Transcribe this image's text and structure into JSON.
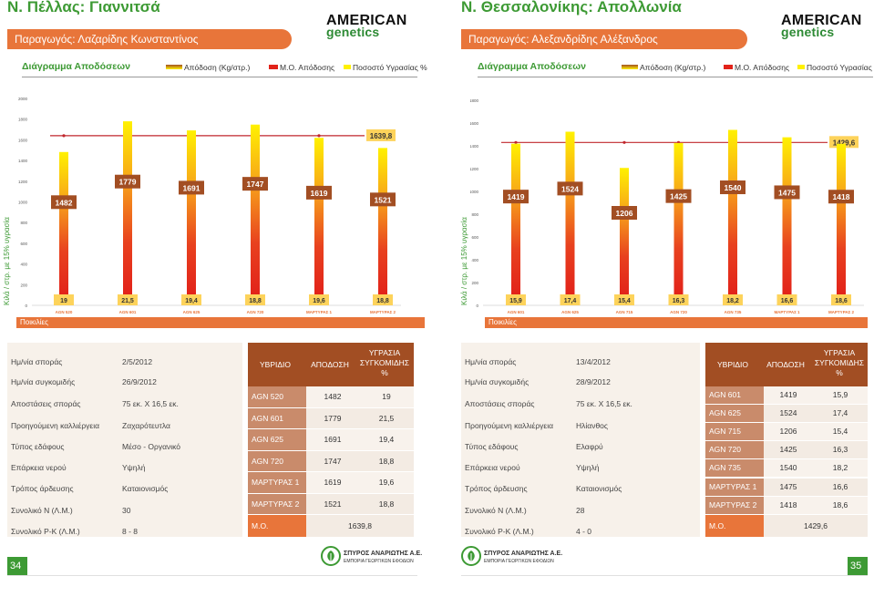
{
  "colors": {
    "green": "#3d9a34",
    "orange": "#e8753a",
    "brown": "#a24e23",
    "tan": "#c98b6b",
    "panel": "#f7f1ea",
    "red": "#e2231a",
    "yellow": "#fff100",
    "mo_label": "#fdd35b"
  },
  "common": {
    "legend_title": "Διάγραμμα Αποδόσεων",
    "legend_items": [
      "Απόδοση (Kg/στρ.)",
      "Μ.Ο. Απόδοσης",
      "Ποσοστό Υγρασίας %"
    ],
    "ylabel": "Κιλά / στρ. με 15% υγρασία",
    "varieties_label": "Ποικιλίες",
    "logo": {
      "line1": "AMERICAN",
      "line2": "genetics"
    },
    "footer_logo": {
      "line1": "ΣΠΥΡΟΣ ΑΝΑΡΙΩΤΗΣ Α.Ε.",
      "line2": "ΕΜΠΟΡΙΑ ΓΕΩΡΓΙΚΩΝ ΕΦΟΔΙΩΝ"
    }
  },
  "pages": [
    {
      "title": "Ν. Πέλλας: Γιαννιτσά",
      "producer": "Παραγωγός: Λαζαρίδης Κωνσταντίνος",
      "page_number": "34",
      "info": [
        {
          "label": "Ημ/νία σποράς",
          "value": "2/5/2012"
        },
        {
          "label": "Ημ/νία συγκομιδής",
          "value": "26/9/2012"
        },
        {
          "label": "Αποστάσεις σποράς",
          "value": "75 εκ. Χ 16,5 εκ."
        },
        {
          "label": "Προηγούμενη καλλιέργεια",
          "value": "Ζαχαρότευτλα"
        },
        {
          "label": "Τύπος εδάφους",
          "value": "Μέσο - Οργανικό"
        },
        {
          "label": "Επάρκεια νερού",
          "value": "Υψηλή"
        },
        {
          "label": "Τρόπος άρδευσης",
          "value": "Καταιονισμός"
        },
        {
          "label": "Συνολικό Ν (Λ.Μ.)",
          "value": "30"
        },
        {
          "label": "Συνολικό P-K (Λ.Μ.)",
          "value": "8 - 8"
        }
      ],
      "table": {
        "headers": [
          "ΥΒΡΙΔΙΟ",
          "ΑΠΟΔΟΣΗ",
          "ΥΓΡΑΣΙΑ ΣΥΓΚΟΜΙΔΗΣ %"
        ],
        "rows": [
          [
            "AGN 520",
            "1482",
            "19"
          ],
          [
            "AGN 601",
            "1779",
            "21,5"
          ],
          [
            "AGN 625",
            "1691",
            "19,4"
          ],
          [
            "AGN 720",
            "1747",
            "18,8"
          ],
          [
            "ΜΑΡΤΥΡΑΣ 1",
            "1619",
            "19,6"
          ],
          [
            "ΜΑΡΤΥΡΑΣ 2",
            "1521",
            "18,8"
          ]
        ],
        "mo_label": "Μ.Ο.",
        "mo_value": "1639,8"
      }
    },
    {
      "title": "Ν. Θεσσαλονίκης: Απολλωνία",
      "producer": "Παραγωγός: Αλεξανδρίδης Αλέξανδρος",
      "page_number": "35",
      "info": [
        {
          "label": "Ημ/νία σποράς",
          "value": "13/4/2012"
        },
        {
          "label": "Ημ/νία συγκομιδής",
          "value": "28/9/2012"
        },
        {
          "label": "Αποστάσεις σποράς",
          "value": "75 εκ. Χ 16,5 εκ."
        },
        {
          "label": "Προηγούμενη καλλιέργεια",
          "value": "Ηλίανθος"
        },
        {
          "label": "Τύπος εδάφους",
          "value": "Ελαφρύ"
        },
        {
          "label": "Επάρκεια νερού",
          "value": "Υψηλή"
        },
        {
          "label": "Τρόπος άρδευσης",
          "value": "Καταιονισμός"
        },
        {
          "label": "Συνολικό Ν (Λ.Μ.)",
          "value": "28"
        },
        {
          "label": "Συνολικό P-K (Λ.Μ.)",
          "value": "4 - 0"
        }
      ],
      "table": {
        "headers": [
          "ΥΒΡΙΔΙΟ",
          "ΑΠΟΔΟΣΗ",
          "ΥΓΡΑΣΙΑ ΣΥΓΚΟΜΙΔΗΣ %"
        ],
        "rows": [
          [
            "AGN 601",
            "1419",
            "15,9"
          ],
          [
            "AGN 625",
            "1524",
            "17,4"
          ],
          [
            "AGN 715",
            "1206",
            "15,4"
          ],
          [
            "AGN 720",
            "1425",
            "16,3"
          ],
          [
            "AGN 735",
            "1540",
            "18,2"
          ],
          [
            "ΜΑΡΤΥΡΑΣ 1",
            "1475",
            "16,6"
          ],
          [
            "ΜΑΡΤΥΡΑΣ 2",
            "1418",
            "18,6"
          ]
        ],
        "mo_label": "Μ.Ο.",
        "mo_value": "1429,6"
      }
    }
  ],
  "chart_data": [
    {
      "type": "bar",
      "categories": [
        "AGN 520",
        "AGN 601",
        "AGN 625",
        "AGN 720",
        "ΜΑΡΤΥΡΑΣ 1",
        "ΜΑΡΤΥΡΑΣ 2"
      ],
      "values": [
        1482,
        1779,
        1691,
        1747,
        1619,
        1521
      ],
      "value_labels": [
        "1482",
        "1779",
        "1691",
        "1747",
        "1619",
        "1521"
      ],
      "moisture": [
        "19",
        "21,5",
        "19,4",
        "18,8",
        "19,6",
        "18,8"
      ],
      "average": 1639.8,
      "average_label": "1639,8",
      "ylim": [
        0,
        2000
      ],
      "yticks": [
        "0",
        "200",
        "400",
        "600",
        "800",
        "1000",
        "1200",
        "1400",
        "1600",
        "1800",
        "2000"
      ]
    },
    {
      "type": "bar",
      "categories": [
        "AGN 601",
        "AGN 625",
        "AGN 715",
        "AGN 720",
        "AGN 735",
        "ΜΑΡΤΥΡΑΣ 1",
        "ΜΑΡΤΥΡΑΣ 2"
      ],
      "values": [
        1419,
        1524,
        1206,
        1425,
        1540,
        1475,
        1418
      ],
      "value_labels": [
        "1419",
        "1524",
        "1206",
        "1425",
        "1540",
        "1475",
        "1418"
      ],
      "moisture": [
        "15,9",
        "17,4",
        "15,4",
        "16,3",
        "18,2",
        "16,6",
        "18,6"
      ],
      "average": 1429.6,
      "average_label": "1429,6",
      "ylim": [
        0,
        1800
      ],
      "yticks": [
        "0",
        "200",
        "400",
        "600",
        "800",
        "1000",
        "1200",
        "1400",
        "1600",
        "1800"
      ]
    }
  ]
}
